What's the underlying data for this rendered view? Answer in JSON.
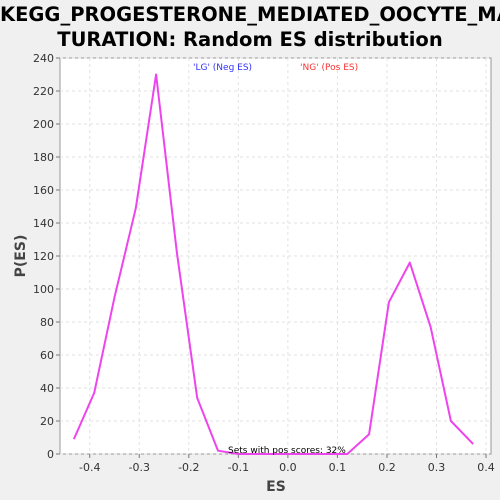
{
  "chart_data": {
    "type": "line",
    "title_line1": "KEGG_PROGESTERONE_MEDIATED_OOCYTE_MA",
    "title_line2": "TURATION: Random ES distribution",
    "xlabel": "ES",
    "ylabel": "P(ES)",
    "xlim": [
      -0.46,
      0.41
    ],
    "ylim": [
      0,
      240
    ],
    "xticks": [
      -0.4,
      -0.3,
      -0.2,
      -0.1,
      0.0,
      0.1,
      0.2,
      0.3,
      0.4
    ],
    "xtick_labels": [
      "-0.4",
      "-0.3",
      "-0.2",
      "-0.1",
      "0.0",
      "0.1",
      "0.2",
      "0.3",
      "0.4"
    ],
    "yticks": [
      0,
      20,
      40,
      60,
      80,
      100,
      120,
      140,
      160,
      180,
      200,
      220,
      240
    ],
    "ytick_labels": [
      "0",
      "20",
      "40",
      "60",
      "80",
      "100",
      "120",
      "140",
      "160",
      "180",
      "200",
      "220",
      "240"
    ],
    "grid": true,
    "legend": [
      {
        "label": "'LG' (Neg ES)",
        "color": "#3333ff"
      },
      {
        "label": "'NG' (Pos ES)",
        "color": "#ff3333"
      }
    ],
    "annotation": "Sets with pos scores: 32%",
    "series": [
      {
        "color": "#ee44ee",
        "points": [
          [
            -0.432,
            9
          ],
          [
            -0.391,
            37
          ],
          [
            -0.35,
            95
          ],
          [
            -0.307,
            149
          ],
          [
            -0.266,
            230
          ],
          [
            -0.224,
            122
          ],
          [
            -0.183,
            34
          ],
          [
            -0.141,
            2
          ],
          [
            -0.1,
            0
          ],
          [
            0.0,
            0
          ],
          [
            0.12,
            0
          ],
          [
            0.164,
            12
          ],
          [
            0.204,
            92
          ],
          [
            0.246,
            116
          ],
          [
            0.288,
            77
          ],
          [
            0.329,
            20
          ],
          [
            0.374,
            6
          ]
        ]
      }
    ]
  }
}
